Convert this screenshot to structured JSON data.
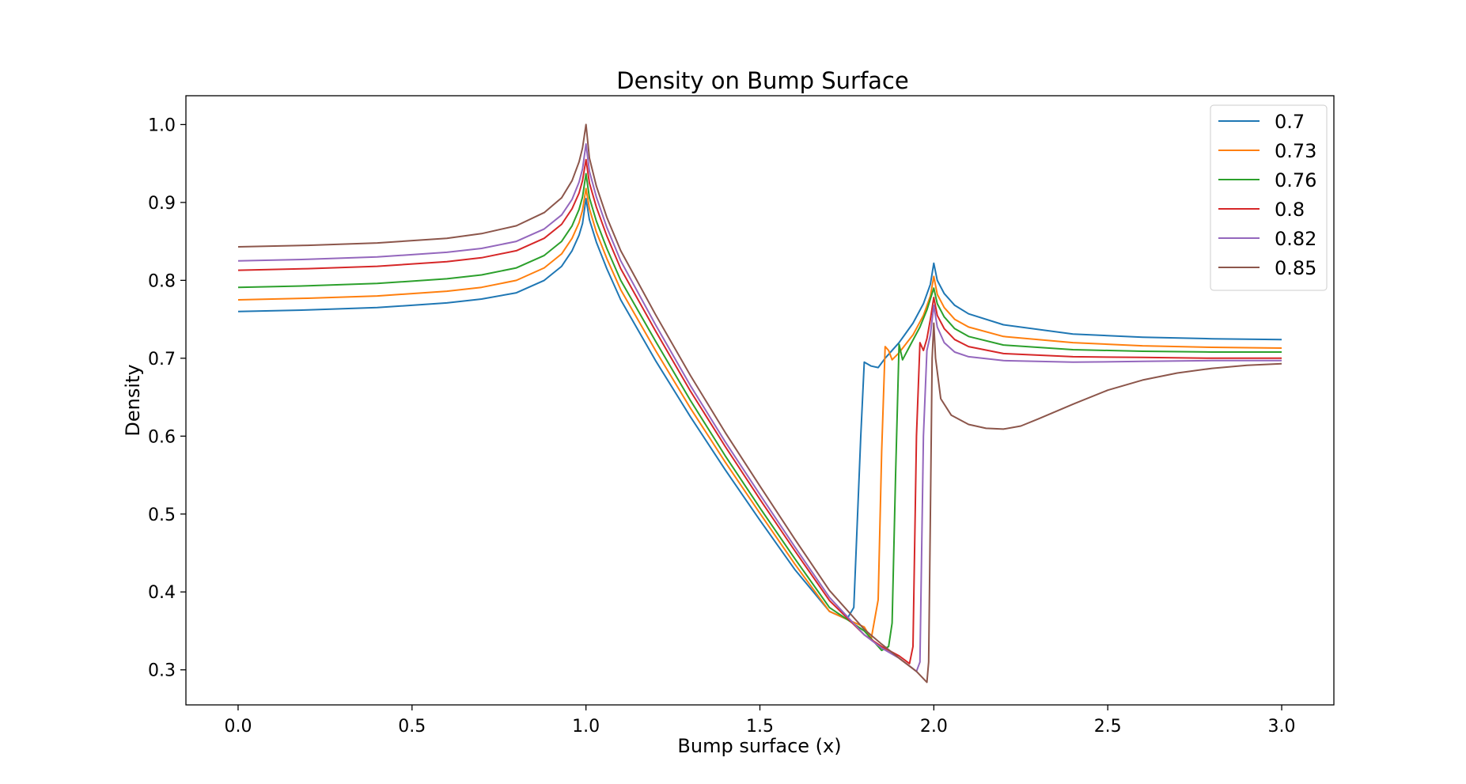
{
  "chart_data": {
    "type": "line",
    "title": "Density on Bump Surface",
    "xlabel": "Bump surface (x)",
    "ylabel": "Density",
    "xlim": [
      -0.15,
      3.15
    ],
    "ylim": [
      0.255,
      1.037
    ],
    "xticks": [
      0.0,
      0.5,
      1.0,
      1.5,
      2.0,
      2.5,
      3.0
    ],
    "xtick_labels": [
      "0.0",
      "0.5",
      "1.0",
      "1.5",
      "2.0",
      "2.5",
      "3.0"
    ],
    "yticks": [
      0.3,
      0.4,
      0.5,
      0.6,
      0.7,
      0.8,
      0.9,
      1.0
    ],
    "ytick_labels": [
      "0.3",
      "0.4",
      "0.5",
      "0.6",
      "0.7",
      "0.8",
      "0.9",
      "1.0"
    ],
    "grid": false,
    "legend_position": "top-right",
    "series": [
      {
        "name": "0.7",
        "color": "#1f77b4",
        "x": [
          0.0,
          0.2,
          0.4,
          0.6,
          0.7,
          0.8,
          0.88,
          0.93,
          0.96,
          0.98,
          0.99,
          1.0,
          1.01,
          1.03,
          1.06,
          1.1,
          1.2,
          1.3,
          1.4,
          1.5,
          1.6,
          1.7,
          1.75,
          1.77,
          1.79,
          1.8,
          1.82,
          1.84,
          1.86,
          1.9,
          1.94,
          1.97,
          1.99,
          2.0,
          2.01,
          2.03,
          2.06,
          2.1,
          2.2,
          2.4,
          2.6,
          2.8,
          3.0
        ],
        "y": [
          0.76,
          0.762,
          0.765,
          0.771,
          0.776,
          0.784,
          0.8,
          0.818,
          0.838,
          0.858,
          0.873,
          0.905,
          0.878,
          0.849,
          0.815,
          0.775,
          0.697,
          0.625,
          0.557,
          0.492,
          0.429,
          0.375,
          0.365,
          0.38,
          0.6,
          0.695,
          0.69,
          0.688,
          0.7,
          0.72,
          0.745,
          0.77,
          0.795,
          0.822,
          0.8,
          0.783,
          0.768,
          0.757,
          0.743,
          0.731,
          0.727,
          0.725,
          0.724
        ]
      },
      {
        "name": "0.73",
        "color": "#ff7f0e",
        "x": [
          0.0,
          0.2,
          0.4,
          0.6,
          0.7,
          0.8,
          0.88,
          0.93,
          0.96,
          0.98,
          0.99,
          1.0,
          1.01,
          1.03,
          1.06,
          1.1,
          1.2,
          1.3,
          1.4,
          1.5,
          1.6,
          1.7,
          1.8,
          1.82,
          1.84,
          1.85,
          1.86,
          1.87,
          1.88,
          1.9,
          1.94,
          1.97,
          1.99,
          2.0,
          2.01,
          2.03,
          2.06,
          2.1,
          2.2,
          2.4,
          2.6,
          2.8,
          3.0
        ],
        "y": [
          0.775,
          0.777,
          0.78,
          0.786,
          0.791,
          0.8,
          0.816,
          0.834,
          0.854,
          0.874,
          0.89,
          0.918,
          0.892,
          0.862,
          0.828,
          0.788,
          0.71,
          0.636,
          0.567,
          0.501,
          0.436,
          0.375,
          0.355,
          0.34,
          0.39,
          0.58,
          0.715,
          0.71,
          0.698,
          0.707,
          0.73,
          0.755,
          0.78,
          0.805,
          0.782,
          0.765,
          0.75,
          0.74,
          0.728,
          0.72,
          0.716,
          0.714,
          0.713
        ]
      },
      {
        "name": "0.76",
        "color": "#2ca02c",
        "x": [
          0.0,
          0.2,
          0.4,
          0.6,
          0.7,
          0.8,
          0.88,
          0.93,
          0.96,
          0.98,
          0.99,
          1.0,
          1.01,
          1.03,
          1.06,
          1.1,
          1.2,
          1.3,
          1.4,
          1.5,
          1.6,
          1.7,
          1.8,
          1.85,
          1.87,
          1.88,
          1.89,
          1.9,
          1.91,
          1.93,
          1.96,
          1.98,
          2.0,
          2.01,
          2.03,
          2.06,
          2.1,
          2.2,
          2.4,
          2.6,
          2.8,
          3.0
        ],
        "y": [
          0.791,
          0.793,
          0.796,
          0.802,
          0.807,
          0.816,
          0.832,
          0.85,
          0.87,
          0.891,
          0.907,
          0.937,
          0.906,
          0.876,
          0.841,
          0.8,
          0.722,
          0.646,
          0.575,
          0.508,
          0.443,
          0.38,
          0.35,
          0.325,
          0.33,
          0.36,
          0.55,
          0.718,
          0.698,
          0.715,
          0.74,
          0.762,
          0.79,
          0.77,
          0.753,
          0.738,
          0.728,
          0.717,
          0.711,
          0.709,
          0.708,
          0.708
        ]
      },
      {
        "name": "0.8",
        "color": "#d62728",
        "x": [
          0.0,
          0.2,
          0.4,
          0.6,
          0.7,
          0.8,
          0.88,
          0.93,
          0.96,
          0.98,
          0.99,
          1.0,
          1.01,
          1.03,
          1.06,
          1.1,
          1.2,
          1.3,
          1.4,
          1.5,
          1.6,
          1.7,
          1.8,
          1.85,
          1.9,
          1.93,
          1.94,
          1.95,
          1.96,
          1.97,
          1.98,
          1.99,
          2.0,
          2.01,
          2.03,
          2.06,
          2.1,
          2.2,
          2.4,
          2.6,
          2.8,
          3.0
        ],
        "y": [
          0.813,
          0.815,
          0.818,
          0.824,
          0.829,
          0.838,
          0.854,
          0.872,
          0.892,
          0.912,
          0.928,
          0.955,
          0.925,
          0.894,
          0.857,
          0.815,
          0.735,
          0.658,
          0.587,
          0.519,
          0.453,
          0.389,
          0.345,
          0.33,
          0.318,
          0.308,
          0.33,
          0.6,
          0.72,
          0.71,
          0.725,
          0.75,
          0.778,
          0.755,
          0.738,
          0.724,
          0.715,
          0.706,
          0.702,
          0.701,
          0.7,
          0.7
        ]
      },
      {
        "name": "0.82",
        "color": "#9467bd",
        "x": [
          0.0,
          0.2,
          0.4,
          0.6,
          0.7,
          0.8,
          0.88,
          0.93,
          0.96,
          0.98,
          0.99,
          1.0,
          1.01,
          1.03,
          1.06,
          1.1,
          1.2,
          1.3,
          1.4,
          1.5,
          1.6,
          1.7,
          1.8,
          1.85,
          1.9,
          1.93,
          1.95,
          1.96,
          1.97,
          1.98,
          1.99,
          2.0,
          2.01,
          2.03,
          2.06,
          2.1,
          2.2,
          2.4,
          2.6,
          2.8,
          3.0
        ],
        "y": [
          0.825,
          0.827,
          0.83,
          0.836,
          0.841,
          0.85,
          0.866,
          0.884,
          0.904,
          0.926,
          0.943,
          0.975,
          0.94,
          0.907,
          0.868,
          0.825,
          0.743,
          0.665,
          0.593,
          0.525,
          0.458,
          0.393,
          0.345,
          0.328,
          0.315,
          0.305,
          0.298,
          0.31,
          0.6,
          0.71,
          0.73,
          0.768,
          0.74,
          0.72,
          0.708,
          0.702,
          0.697,
          0.695,
          0.696,
          0.697,
          0.697
        ]
      },
      {
        "name": "0.85",
        "color": "#8c564b",
        "x": [
          0.0,
          0.2,
          0.4,
          0.6,
          0.7,
          0.8,
          0.88,
          0.93,
          0.96,
          0.98,
          0.99,
          1.0,
          1.01,
          1.03,
          1.06,
          1.1,
          1.2,
          1.3,
          1.4,
          1.5,
          1.6,
          1.7,
          1.8,
          1.85,
          1.9,
          1.95,
          1.98,
          1.985,
          1.99,
          1.995,
          2.0,
          2.005,
          2.02,
          2.05,
          2.1,
          2.15,
          2.2,
          2.25,
          2.3,
          2.4,
          2.5,
          2.6,
          2.7,
          2.8,
          2.9,
          3.0
        ],
        "y": [
          0.843,
          0.845,
          0.848,
          0.854,
          0.86,
          0.87,
          0.887,
          0.906,
          0.928,
          0.952,
          0.97,
          1.0,
          0.957,
          0.921,
          0.881,
          0.838,
          0.756,
          0.678,
          0.605,
          0.536,
          0.468,
          0.402,
          0.352,
          0.333,
          0.315,
          0.298,
          0.284,
          0.31,
          0.5,
          0.7,
          0.745,
          0.7,
          0.648,
          0.627,
          0.615,
          0.61,
          0.609,
          0.613,
          0.622,
          0.641,
          0.659,
          0.672,
          0.681,
          0.687,
          0.691,
          0.693
        ]
      }
    ]
  }
}
